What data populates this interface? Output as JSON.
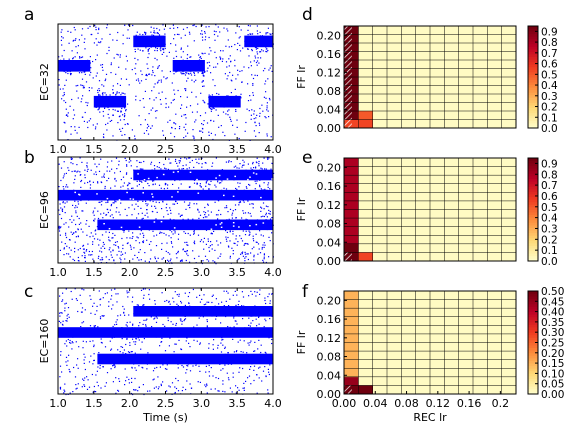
{
  "chart_data": [
    {
      "type": "scatter",
      "panel": "a",
      "ylabel": "EC=32",
      "xlabel": "",
      "xlim": [
        1.0,
        4.0
      ],
      "xticks": [
        "1.0",
        "1.5",
        "2.0",
        "2.5",
        "3.0",
        "3.5",
        "4.0"
      ],
      "point_color": "#0000ff",
      "background_density": "sparse",
      "dense_blocks": [
        {
          "x0": 1.0,
          "x1": 1.45,
          "row": 0.64
        },
        {
          "x0": 1.5,
          "x1": 1.95,
          "row": 0.33
        },
        {
          "x0": 2.05,
          "x1": 2.5,
          "row": 0.85
        },
        {
          "x0": 2.6,
          "x1": 3.05,
          "row": 0.64
        },
        {
          "x0": 3.1,
          "x1": 3.55,
          "row": 0.33
        },
        {
          "x0": 3.6,
          "x1": 4.0,
          "row": 0.85
        }
      ]
    },
    {
      "type": "scatter",
      "panel": "b",
      "ylabel": "EC=96",
      "xlabel": "",
      "xlim": [
        1.0,
        4.0
      ],
      "xticks": [
        "1.0",
        "1.5",
        "2.0",
        "2.5",
        "3.0",
        "3.5",
        "4.0"
      ],
      "point_color": "#0000ff",
      "background_density": "medium",
      "dense_blocks": [
        {
          "x0": 1.0,
          "x1": 4.0,
          "row": 0.64
        },
        {
          "x0": 1.55,
          "x1": 4.0,
          "row": 0.36
        },
        {
          "x0": 2.05,
          "x1": 4.0,
          "row": 0.83
        }
      ]
    },
    {
      "type": "scatter",
      "panel": "c",
      "ylabel": "EC=160",
      "xlabel": "Time (s)",
      "xlim": [
        1.0,
        4.0
      ],
      "xticks": [
        "1.0",
        "1.5",
        "2.0",
        "2.5",
        "3.0",
        "3.5",
        "4.0"
      ],
      "point_color": "#0000ff",
      "background_density": "sparse",
      "dense_blocks": [
        {
          "x0": 1.0,
          "x1": 4.0,
          "row": 0.58
        },
        {
          "x0": 1.55,
          "x1": 4.0,
          "row": 0.33
        },
        {
          "x0": 2.05,
          "x1": 4.0,
          "row": 0.78
        }
      ]
    },
    {
      "type": "heatmap",
      "panel": "d",
      "xlabel": "",
      "ylabel": "FF lr",
      "ylim": [
        0.0,
        0.22
      ],
      "yticks": [
        "0.00",
        "0.04",
        "0.08",
        "0.12",
        "0.16",
        "0.20"
      ],
      "colorbar_ticks": [
        "0.1",
        "0.2",
        "0.3",
        "0.4",
        "0.5",
        "0.6",
        "0.7",
        "0.8",
        "0.9"
      ],
      "colorbar_bottom_tick": "0.0",
      "vmin": 0.0,
      "vmax": 0.95,
      "grid": "12x12",
      "background_value": 0.02,
      "cells": [
        {
          "col": 0,
          "row": 0,
          "value": 0.55
        },
        {
          "col": 1,
          "row": 0,
          "value": 0.55
        },
        {
          "col": 0,
          "row": 1,
          "value": 0.95
        },
        {
          "col": 1,
          "row": 1,
          "value": 0.5
        },
        {
          "col": 0,
          "row": 2,
          "value": 0.95
        },
        {
          "col": 0,
          "row": 3,
          "value": 0.95
        },
        {
          "col": 0,
          "row": 4,
          "value": 0.95
        },
        {
          "col": 0,
          "row": 5,
          "value": 0.95
        },
        {
          "col": 0,
          "row": 6,
          "value": 0.95
        },
        {
          "col": 0,
          "row": 7,
          "value": 0.95
        },
        {
          "col": 0,
          "row": 8,
          "value": 0.95
        },
        {
          "col": 0,
          "row": 9,
          "value": 0.95
        },
        {
          "col": 0,
          "row": 10,
          "value": 0.95
        },
        {
          "col": 0,
          "row": 11,
          "value": 0.95
        }
      ],
      "hatched_cells": [
        {
          "col": 0,
          "row": 0
        },
        {
          "col": 0,
          "row": 1
        },
        {
          "col": 0,
          "row": 2
        },
        {
          "col": 0,
          "row": 3
        },
        {
          "col": 0,
          "row": 4
        },
        {
          "col": 0,
          "row": 5
        },
        {
          "col": 0,
          "row": 6
        },
        {
          "col": 0,
          "row": 7
        },
        {
          "col": 0,
          "row": 8
        },
        {
          "col": 0,
          "row": 9
        },
        {
          "col": 0,
          "row": 10
        },
        {
          "col": 0,
          "row": 11
        }
      ]
    },
    {
      "type": "heatmap",
      "panel": "e",
      "xlabel": "",
      "ylabel": "FF lr",
      "ylim": [
        0.0,
        0.22
      ],
      "yticks": [
        "0.00",
        "0.04",
        "0.08",
        "0.12",
        "0.16",
        "0.20"
      ],
      "colorbar_ticks": [
        "0.1",
        "0.2",
        "0.3",
        "0.4",
        "0.5",
        "0.6",
        "0.7",
        "0.8",
        "0.9"
      ],
      "colorbar_bottom_tick": "0.0",
      "vmin": 0.0,
      "vmax": 0.95,
      "grid": "12x12",
      "background_value": 0.02,
      "cells": [
        {
          "col": 0,
          "row": 0,
          "value": 0.95
        },
        {
          "col": 1,
          "row": 0,
          "value": 0.55
        },
        {
          "col": 0,
          "row": 1,
          "value": 0.95
        },
        {
          "col": 0,
          "row": 2,
          "value": 0.8
        },
        {
          "col": 0,
          "row": 3,
          "value": 0.8
        },
        {
          "col": 0,
          "row": 4,
          "value": 0.8
        },
        {
          "col": 0,
          "row": 5,
          "value": 0.8
        },
        {
          "col": 0,
          "row": 6,
          "value": 0.8
        },
        {
          "col": 0,
          "row": 7,
          "value": 0.8
        },
        {
          "col": 0,
          "row": 8,
          "value": 0.8
        },
        {
          "col": 0,
          "row": 9,
          "value": 0.8
        },
        {
          "col": 0,
          "row": 10,
          "value": 0.8
        },
        {
          "col": 0,
          "row": 11,
          "value": 0.8
        }
      ],
      "hatched_cells": [
        {
          "col": 0,
          "row": 0
        }
      ]
    },
    {
      "type": "heatmap",
      "panel": "f",
      "xlabel": "REC lr",
      "ylabel": "FF lr",
      "xlim": [
        0.0,
        0.22
      ],
      "ylim": [
        0.0,
        0.22
      ],
      "xticks": [
        "0.00",
        "0.04",
        "0.08",
        "0.12",
        "0.16",
        "0.2"
      ],
      "yticks": [
        "0.00",
        "0.04",
        "0.08",
        "0.12",
        "0.16",
        "0.20"
      ],
      "colorbar_ticks": [
        "0.00",
        "0.05",
        "0.10",
        "0.15",
        "0.20",
        "0.25",
        "0.30",
        "0.35",
        "0.40",
        "0.45",
        "0.50"
      ],
      "vmin": 0.0,
      "vmax": 0.5,
      "grid": "12x12",
      "background_value": 0.01,
      "cells": [
        {
          "col": 0,
          "row": 0,
          "value": 0.5
        },
        {
          "col": 1,
          "row": 0,
          "value": 0.5
        },
        {
          "col": 0,
          "row": 1,
          "value": 0.45
        },
        {
          "col": 0,
          "row": 2,
          "value": 0.15
        },
        {
          "col": 0,
          "row": 3,
          "value": 0.15
        },
        {
          "col": 0,
          "row": 4,
          "value": 0.15
        },
        {
          "col": 0,
          "row": 5,
          "value": 0.15
        },
        {
          "col": 0,
          "row": 6,
          "value": 0.15
        },
        {
          "col": 0,
          "row": 7,
          "value": 0.15
        },
        {
          "col": 0,
          "row": 8,
          "value": 0.15
        },
        {
          "col": 0,
          "row": 9,
          "value": 0.15
        },
        {
          "col": 0,
          "row": 10,
          "value": 0.15
        },
        {
          "col": 0,
          "row": 11,
          "value": 0.15
        }
      ],
      "hatched_cells": [
        {
          "col": 0,
          "row": 0
        }
      ]
    }
  ]
}
